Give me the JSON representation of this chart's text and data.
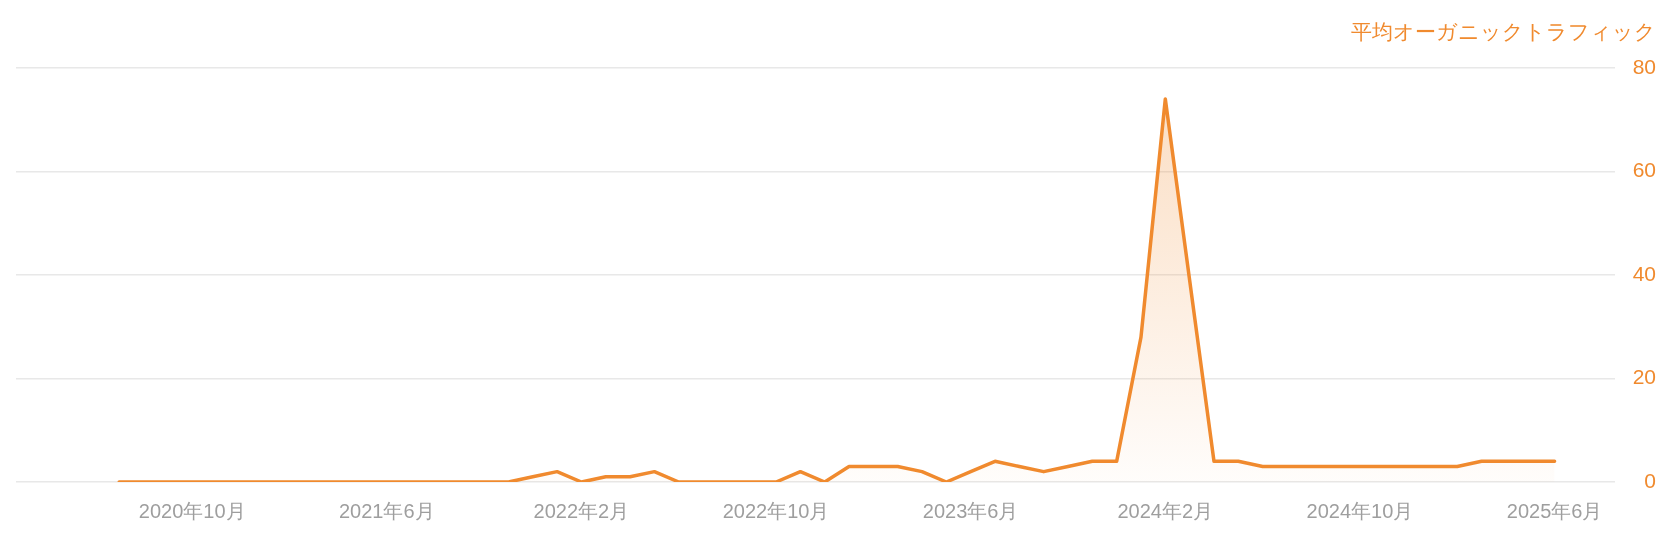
{
  "chart_data": {
    "type": "area",
    "ylabel": "平均オーガニックトラフィック",
    "x": [
      "2020-07",
      "2020-08",
      "2020-09",
      "2020-10",
      "2020-11",
      "2020-12",
      "2021-01",
      "2021-02",
      "2021-03",
      "2021-04",
      "2021-05",
      "2021-06",
      "2021-07",
      "2021-08",
      "2021-09",
      "2021-10",
      "2021-11",
      "2021-12",
      "2022-01",
      "2022-02",
      "2022-03",
      "2022-04",
      "2022-05",
      "2022-06",
      "2022-07",
      "2022-08",
      "2022-09",
      "2022-10",
      "2022-11",
      "2022-12",
      "2023-01",
      "2023-02",
      "2023-03",
      "2023-04",
      "2023-05",
      "2023-06",
      "2023-07",
      "2023-08",
      "2023-09",
      "2023-10",
      "2023-11",
      "2023-12",
      "2024-01",
      "2024-02",
      "2024-03",
      "2024-04",
      "2024-05",
      "2024-06",
      "2024-07",
      "2024-08",
      "2024-09",
      "2024-10",
      "2024-11",
      "2024-12",
      "2025-01",
      "2025-02",
      "2025-03",
      "2025-04",
      "2025-05",
      "2025-06"
    ],
    "values": [
      0,
      0,
      0,
      0,
      0,
      0,
      0,
      0,
      0,
      0,
      0,
      0,
      0,
      0,
      0,
      0,
      0,
      1,
      2,
      0,
      1,
      1,
      2,
      0,
      0,
      0,
      0,
      0,
      2,
      0,
      3,
      3,
      3,
      2,
      0,
      2,
      4,
      3,
      2,
      3,
      4,
      4,
      28,
      74,
      39,
      4,
      4,
      3,
      3,
      3,
      3,
      3,
      3,
      3,
      3,
      3,
      4,
      4,
      4,
      4
    ],
    "color": "#f08a2e",
    "xlim": [
      "2020-02-23",
      "2025-08-16"
    ],
    "xticks": [
      {
        "value": "2020-10",
        "label": "2020年10月"
      },
      {
        "value": "2021-06",
        "label": "2021年6月"
      },
      {
        "value": "2022-02",
        "label": "2022年2月"
      },
      {
        "value": "2022-10",
        "label": "2022年10月"
      },
      {
        "value": "2023-06",
        "label": "2023年6月"
      },
      {
        "value": "2024-02",
        "label": "2024年2月"
      },
      {
        "value": "2024-10",
        "label": "2024年10月"
      },
      {
        "value": "2025-06",
        "label": "2025年6月"
      }
    ],
    "ylim": [
      0,
      80
    ],
    "yticks": [
      0,
      20,
      40,
      60,
      80
    ],
    "grid": "y"
  }
}
